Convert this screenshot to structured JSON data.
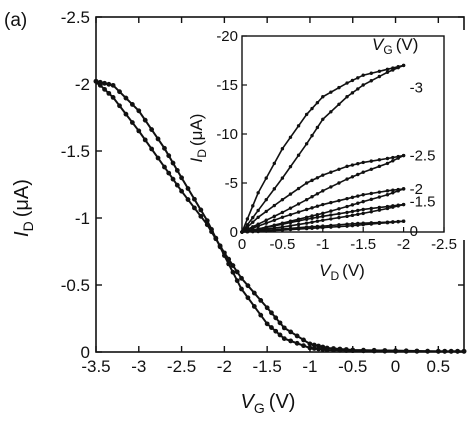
{
  "panel_label": "(a)",
  "chart_data": [
    {
      "type": "line",
      "role": "main",
      "xlabel_main": "V",
      "xlabel_sub": "G",
      "xlabel_unit": "(V)",
      "ylabel_main": "I",
      "ylabel_sub": "D",
      "ylabel_unit": "(μA)",
      "xlim": [
        -3.5,
        0.8
      ],
      "ylim": [
        0,
        -2.5
      ],
      "x_ticks": [
        -3.5,
        -3,
        -2.5,
        -2,
        -1.5,
        -1,
        -0.5,
        0,
        0.5
      ],
      "x_tick_labels": [
        "-3.5",
        "-3",
        "-2.5",
        "-2",
        "-1.5",
        "-1",
        "-0.5",
        "0",
        "0.5"
      ],
      "y_ticks": [
        -2.5,
        -2,
        -1.5,
        -1,
        -0.5,
        0
      ],
      "y_tick_labels": [
        "-2.5",
        "-2",
        "-1.5",
        "-1",
        "-0.5",
        "0"
      ],
      "series": [
        {
          "x": [
            -3.5,
            -3.3,
            -3.0,
            -2.7,
            -2.5,
            -2.2,
            -2.0,
            -1.8,
            -1.5,
            -1.3,
            -1.0,
            -0.8,
            -0.5,
            0.0,
            0.5,
            0.8
          ],
          "y": [
            -2.02,
            -1.9,
            -1.65,
            -1.38,
            -1.2,
            -0.95,
            -0.74,
            -0.55,
            -0.33,
            -0.18,
            -0.06,
            -0.03,
            -0.015,
            -0.01,
            -0.005,
            -0.005
          ]
        },
        {
          "x": [
            -3.5,
            -3.3,
            -3.0,
            -2.7,
            -2.5,
            -2.2,
            -2.0,
            -1.8,
            -1.5,
            -1.3,
            -1.0,
            -0.8,
            -0.5,
            0.0,
            0.5,
            0.8
          ],
          "y": [
            -2.02,
            -1.99,
            -1.8,
            -1.52,
            -1.3,
            -0.98,
            -0.72,
            -0.47,
            -0.21,
            -0.1,
            -0.03,
            -0.015,
            -0.01,
            -0.005,
            -0.005,
            -0.005
          ]
        }
      ]
    },
    {
      "type": "line",
      "role": "inset",
      "xlabel_main": "V",
      "xlabel_sub": "D",
      "xlabel_unit": "(V)",
      "ylabel_main": "I",
      "ylabel_sub": "D",
      "ylabel_unit": "(μA)",
      "legend_title_main": "V",
      "legend_title_sub": "G",
      "legend_title_unit": "(V)",
      "xlim": [
        0,
        -2.5
      ],
      "ylim": [
        0,
        -20
      ],
      "x_ticks": [
        0,
        -0.5,
        -1,
        -1.5,
        -2,
        -2.5
      ],
      "x_tick_labels": [
        "0",
        "-0.5",
        "-1",
        "-1.5",
        "-2",
        "-2.5"
      ],
      "y_ticks": [
        0,
        -5,
        -10,
        -15,
        -20
      ],
      "y_tick_labels": [
        "0",
        "-5",
        "-10",
        "-15",
        "-20"
      ],
      "series": [
        {
          "name": "-3",
          "x": [
            0,
            -0.2,
            -0.5,
            -0.8,
            -1.0,
            -1.3,
            -1.5,
            -1.8,
            -2.0
          ],
          "y_up": [
            0,
            -4.0,
            -8.5,
            -12.0,
            -13.8,
            -15.2,
            -16.0,
            -16.6,
            -17.0
          ],
          "y_down": [
            0,
            -2.2,
            -5.5,
            -9.0,
            -11.5,
            -13.8,
            -15.0,
            -16.3,
            -17.0
          ]
        },
        {
          "name": "-2.5",
          "x": [
            0,
            -0.2,
            -0.5,
            -0.8,
            -1.0,
            -1.3,
            -1.5,
            -1.8,
            -2.0
          ],
          "y_up": [
            0,
            -1.5,
            -3.3,
            -5.0,
            -5.8,
            -6.7,
            -7.1,
            -7.5,
            -7.8
          ],
          "y_down": [
            0,
            -0.8,
            -2.0,
            -3.3,
            -4.2,
            -5.4,
            -6.1,
            -7.0,
            -7.8
          ]
        },
        {
          "name": "-2",
          "x": [
            0,
            -0.2,
            -0.5,
            -0.8,
            -1.0,
            -1.3,
            -1.5,
            -1.8,
            -2.0
          ],
          "y_up": [
            0,
            -0.6,
            -1.5,
            -2.3,
            -2.8,
            -3.4,
            -3.8,
            -4.2,
            -4.4
          ],
          "y_down": [
            0,
            -0.3,
            -0.9,
            -1.5,
            -1.9,
            -2.6,
            -3.1,
            -3.8,
            -4.4
          ]
        },
        {
          "name": "-1.5",
          "x": [
            0,
            -0.2,
            -0.5,
            -0.8,
            -1.0,
            -1.3,
            -1.5,
            -1.8,
            -2.0
          ],
          "y_up": [
            0,
            -0.3,
            -0.8,
            -1.3,
            -1.6,
            -2.0,
            -2.3,
            -2.6,
            -2.8
          ],
          "y_down": [
            0,
            -0.2,
            -0.5,
            -0.9,
            -1.2,
            -1.6,
            -1.9,
            -2.4,
            -2.8
          ]
        },
        {
          "name": "0",
          "x": [
            0,
            -0.2,
            -0.5,
            -0.8,
            -1.0,
            -1.3,
            -1.5,
            -1.8,
            -2.0
          ],
          "y_up": [
            0,
            -0.1,
            -0.3,
            -0.5,
            -0.6,
            -0.8,
            -0.9,
            -1.0,
            -1.1
          ],
          "y_down": [
            0,
            -0.05,
            -0.2,
            -0.35,
            -0.45,
            -0.6,
            -0.75,
            -0.95,
            -1.1
          ]
        }
      ]
    }
  ]
}
